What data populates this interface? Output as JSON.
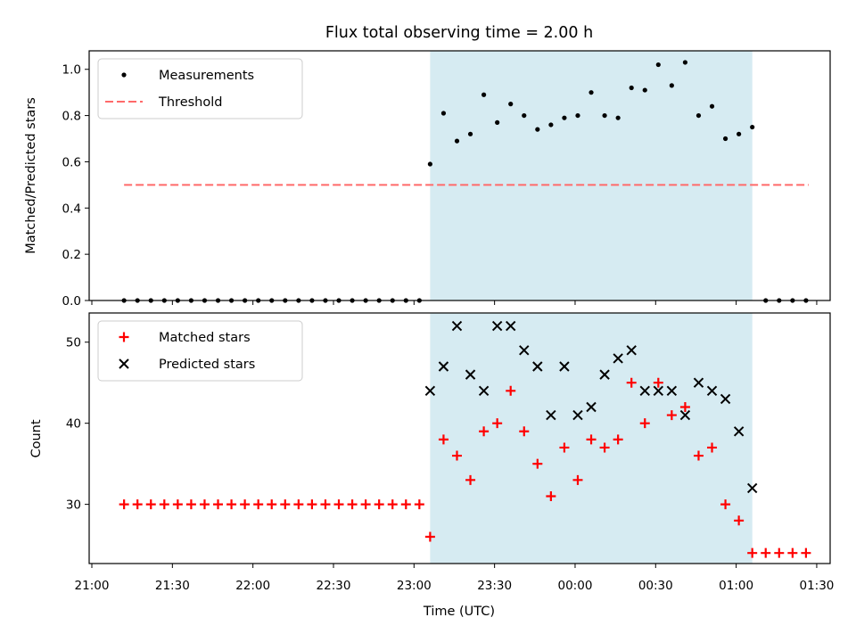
{
  "colors": {
    "shade": "#add8e6",
    "threshold": "#ff6a6a",
    "matched": "#ff0000",
    "predicted": "#000000",
    "measurement": "#000000"
  },
  "chart_data": [
    {
      "type": "scatter",
      "title": "Flux total observing time = 2.00 h",
      "xlabel": "",
      "ylabel": "Matched/Predicted stars",
      "ylim": [
        0,
        1.08
      ],
      "yticks": [
        "0.0",
        "0.2",
        "0.4",
        "0.6",
        "0.8",
        "1.0"
      ],
      "xlim": [
        "20:59",
        "01:35"
      ],
      "shaded_interval": [
        "23:06",
        "01:06"
      ],
      "legend": {
        "placement": "top-left",
        "entries": [
          "Measurements",
          "Threshold"
        ]
      },
      "threshold": {
        "name": "Threshold",
        "value": 0.5,
        "x": [
          "21:12",
          "01:27"
        ]
      },
      "series": [
        {
          "name": "Measurements",
          "x": [
            "21:12",
            "21:17",
            "21:22",
            "21:27",
            "21:32",
            "21:37",
            "21:42",
            "21:47",
            "21:52",
            "21:57",
            "22:02",
            "22:07",
            "22:12",
            "22:17",
            "22:22",
            "22:27",
            "22:32",
            "22:37",
            "22:42",
            "22:47",
            "22:52",
            "22:57",
            "23:02",
            "23:06",
            "23:11",
            "23:16",
            "23:21",
            "23:26",
            "23:31",
            "23:36",
            "23:41",
            "23:46",
            "23:51",
            "23:56",
            "00:01",
            "00:06",
            "00:11",
            "00:16",
            "00:21",
            "00:26",
            "00:31",
            "00:36",
            "00:41",
            "00:46",
            "00:51",
            "00:56",
            "01:01",
            "01:06",
            "01:11",
            "01:16",
            "01:21",
            "01:26"
          ],
          "y": [
            0,
            0,
            0,
            0,
            0,
            0,
            0,
            0,
            0,
            0,
            0,
            0,
            0,
            0,
            0,
            0,
            0,
            0,
            0,
            0,
            0,
            0,
            0,
            0.59,
            0.81,
            0.69,
            0.72,
            0.89,
            0.77,
            0.85,
            0.8,
            0.74,
            0.76,
            0.79,
            0.8,
            0.9,
            0.8,
            0.79,
            0.92,
            0.91,
            1.02,
            0.93,
            1.03,
            0.8,
            0.84,
            0.7,
            0.72,
            0.75,
            0,
            0,
            0,
            0
          ]
        }
      ]
    },
    {
      "type": "scatter",
      "title": "",
      "xlabel": "Time (UTC)",
      "ylabel": "Count",
      "ylim": [
        22.7,
        53.6
      ],
      "yticks": [
        "30",
        "40",
        "50"
      ],
      "xlim": [
        "20:59",
        "01:35"
      ],
      "xticks": [
        "21:00",
        "21:30",
        "22:00",
        "22:30",
        "23:00",
        "23:30",
        "00:00",
        "00:30",
        "01:00",
        "01:30"
      ],
      "shaded_interval": [
        "23:06",
        "01:06"
      ],
      "legend": {
        "placement": "top-left",
        "entries": [
          "Matched stars",
          "Predicted stars"
        ]
      },
      "series": [
        {
          "name": "Matched stars",
          "marker": "plus",
          "x": [
            "21:12",
            "21:17",
            "21:22",
            "21:27",
            "21:32",
            "21:37",
            "21:42",
            "21:47",
            "21:52",
            "21:57",
            "22:02",
            "22:07",
            "22:12",
            "22:17",
            "22:22",
            "22:27",
            "22:32",
            "22:37",
            "22:42",
            "22:47",
            "22:52",
            "22:57",
            "23:02",
            "23:06",
            "23:11",
            "23:16",
            "23:21",
            "23:26",
            "23:31",
            "23:36",
            "23:41",
            "23:46",
            "23:51",
            "23:56",
            "00:01",
            "00:06",
            "00:11",
            "00:16",
            "00:21",
            "00:26",
            "00:31",
            "00:36",
            "00:41",
            "00:46",
            "00:51",
            "00:56",
            "01:01",
            "01:06",
            "01:11",
            "01:16",
            "01:21",
            "01:26"
          ],
          "y": [
            30,
            30,
            30,
            30,
            30,
            30,
            30,
            30,
            30,
            30,
            30,
            30,
            30,
            30,
            30,
            30,
            30,
            30,
            30,
            30,
            30,
            30,
            30,
            26,
            38,
            36,
            33,
            39,
            40,
            44,
            39,
            35,
            31,
            37,
            33,
            38,
            37,
            38,
            45,
            40,
            45,
            41,
            42,
            36,
            37,
            30,
            28,
            24,
            24,
            24,
            24,
            24
          ]
        },
        {
          "name": "Predicted stars",
          "marker": "x",
          "x": [
            "23:06",
            "23:11",
            "23:16",
            "23:21",
            "23:26",
            "23:31",
            "23:36",
            "23:41",
            "23:46",
            "23:51",
            "23:56",
            "00:01",
            "00:06",
            "00:11",
            "00:16",
            "00:21",
            "00:26",
            "00:31",
            "00:36",
            "00:41",
            "00:46",
            "00:51",
            "00:56",
            "01:01",
            "01:06"
          ],
          "y": [
            44,
            47,
            52,
            46,
            44,
            52,
            52,
            49,
            47,
            41,
            47,
            41,
            42,
            46,
            48,
            49,
            44,
            44,
            44,
            41,
            45,
            44,
            43,
            39,
            32
          ]
        }
      ]
    }
  ]
}
